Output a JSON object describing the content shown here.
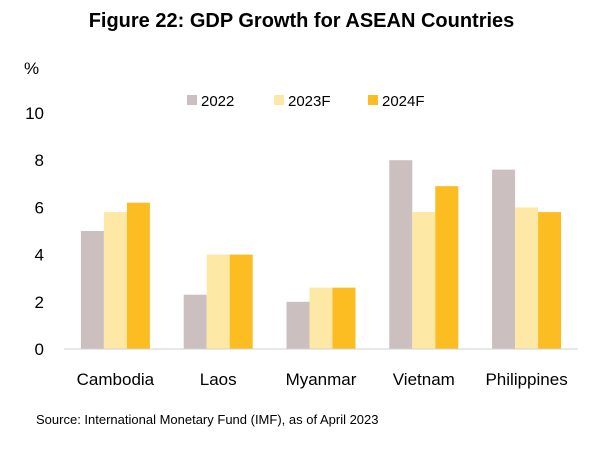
{
  "title": "Figure 22: GDP Growth for ASEAN Countries",
  "source": "Source: International Monetary Fund (IMF), as of April 2023",
  "chart_data": {
    "type": "bar",
    "title": "Figure 22: GDP Growth for ASEAN Countries",
    "ylabel": "%",
    "xlabel": "",
    "ylim": [
      0,
      10
    ],
    "yticks": [
      0,
      2,
      4,
      6,
      8,
      10
    ],
    "grid": false,
    "legend_position": "top-center",
    "categories": [
      "Cambodia",
      "Laos",
      "Myanmar",
      "Vietnam",
      "Philippines"
    ],
    "series": [
      {
        "name": "2022",
        "color": "#cbbfbf",
        "values": [
          5.0,
          2.3,
          2.0,
          8.0,
          7.6
        ]
      },
      {
        "name": "2023F",
        "color": "#fde8a6",
        "values": [
          5.8,
          4.0,
          2.6,
          5.8,
          6.0
        ]
      },
      {
        "name": "2024F",
        "color": "#fbbd21",
        "values": [
          6.2,
          4.0,
          2.6,
          6.9,
          5.8
        ]
      }
    ]
  }
}
